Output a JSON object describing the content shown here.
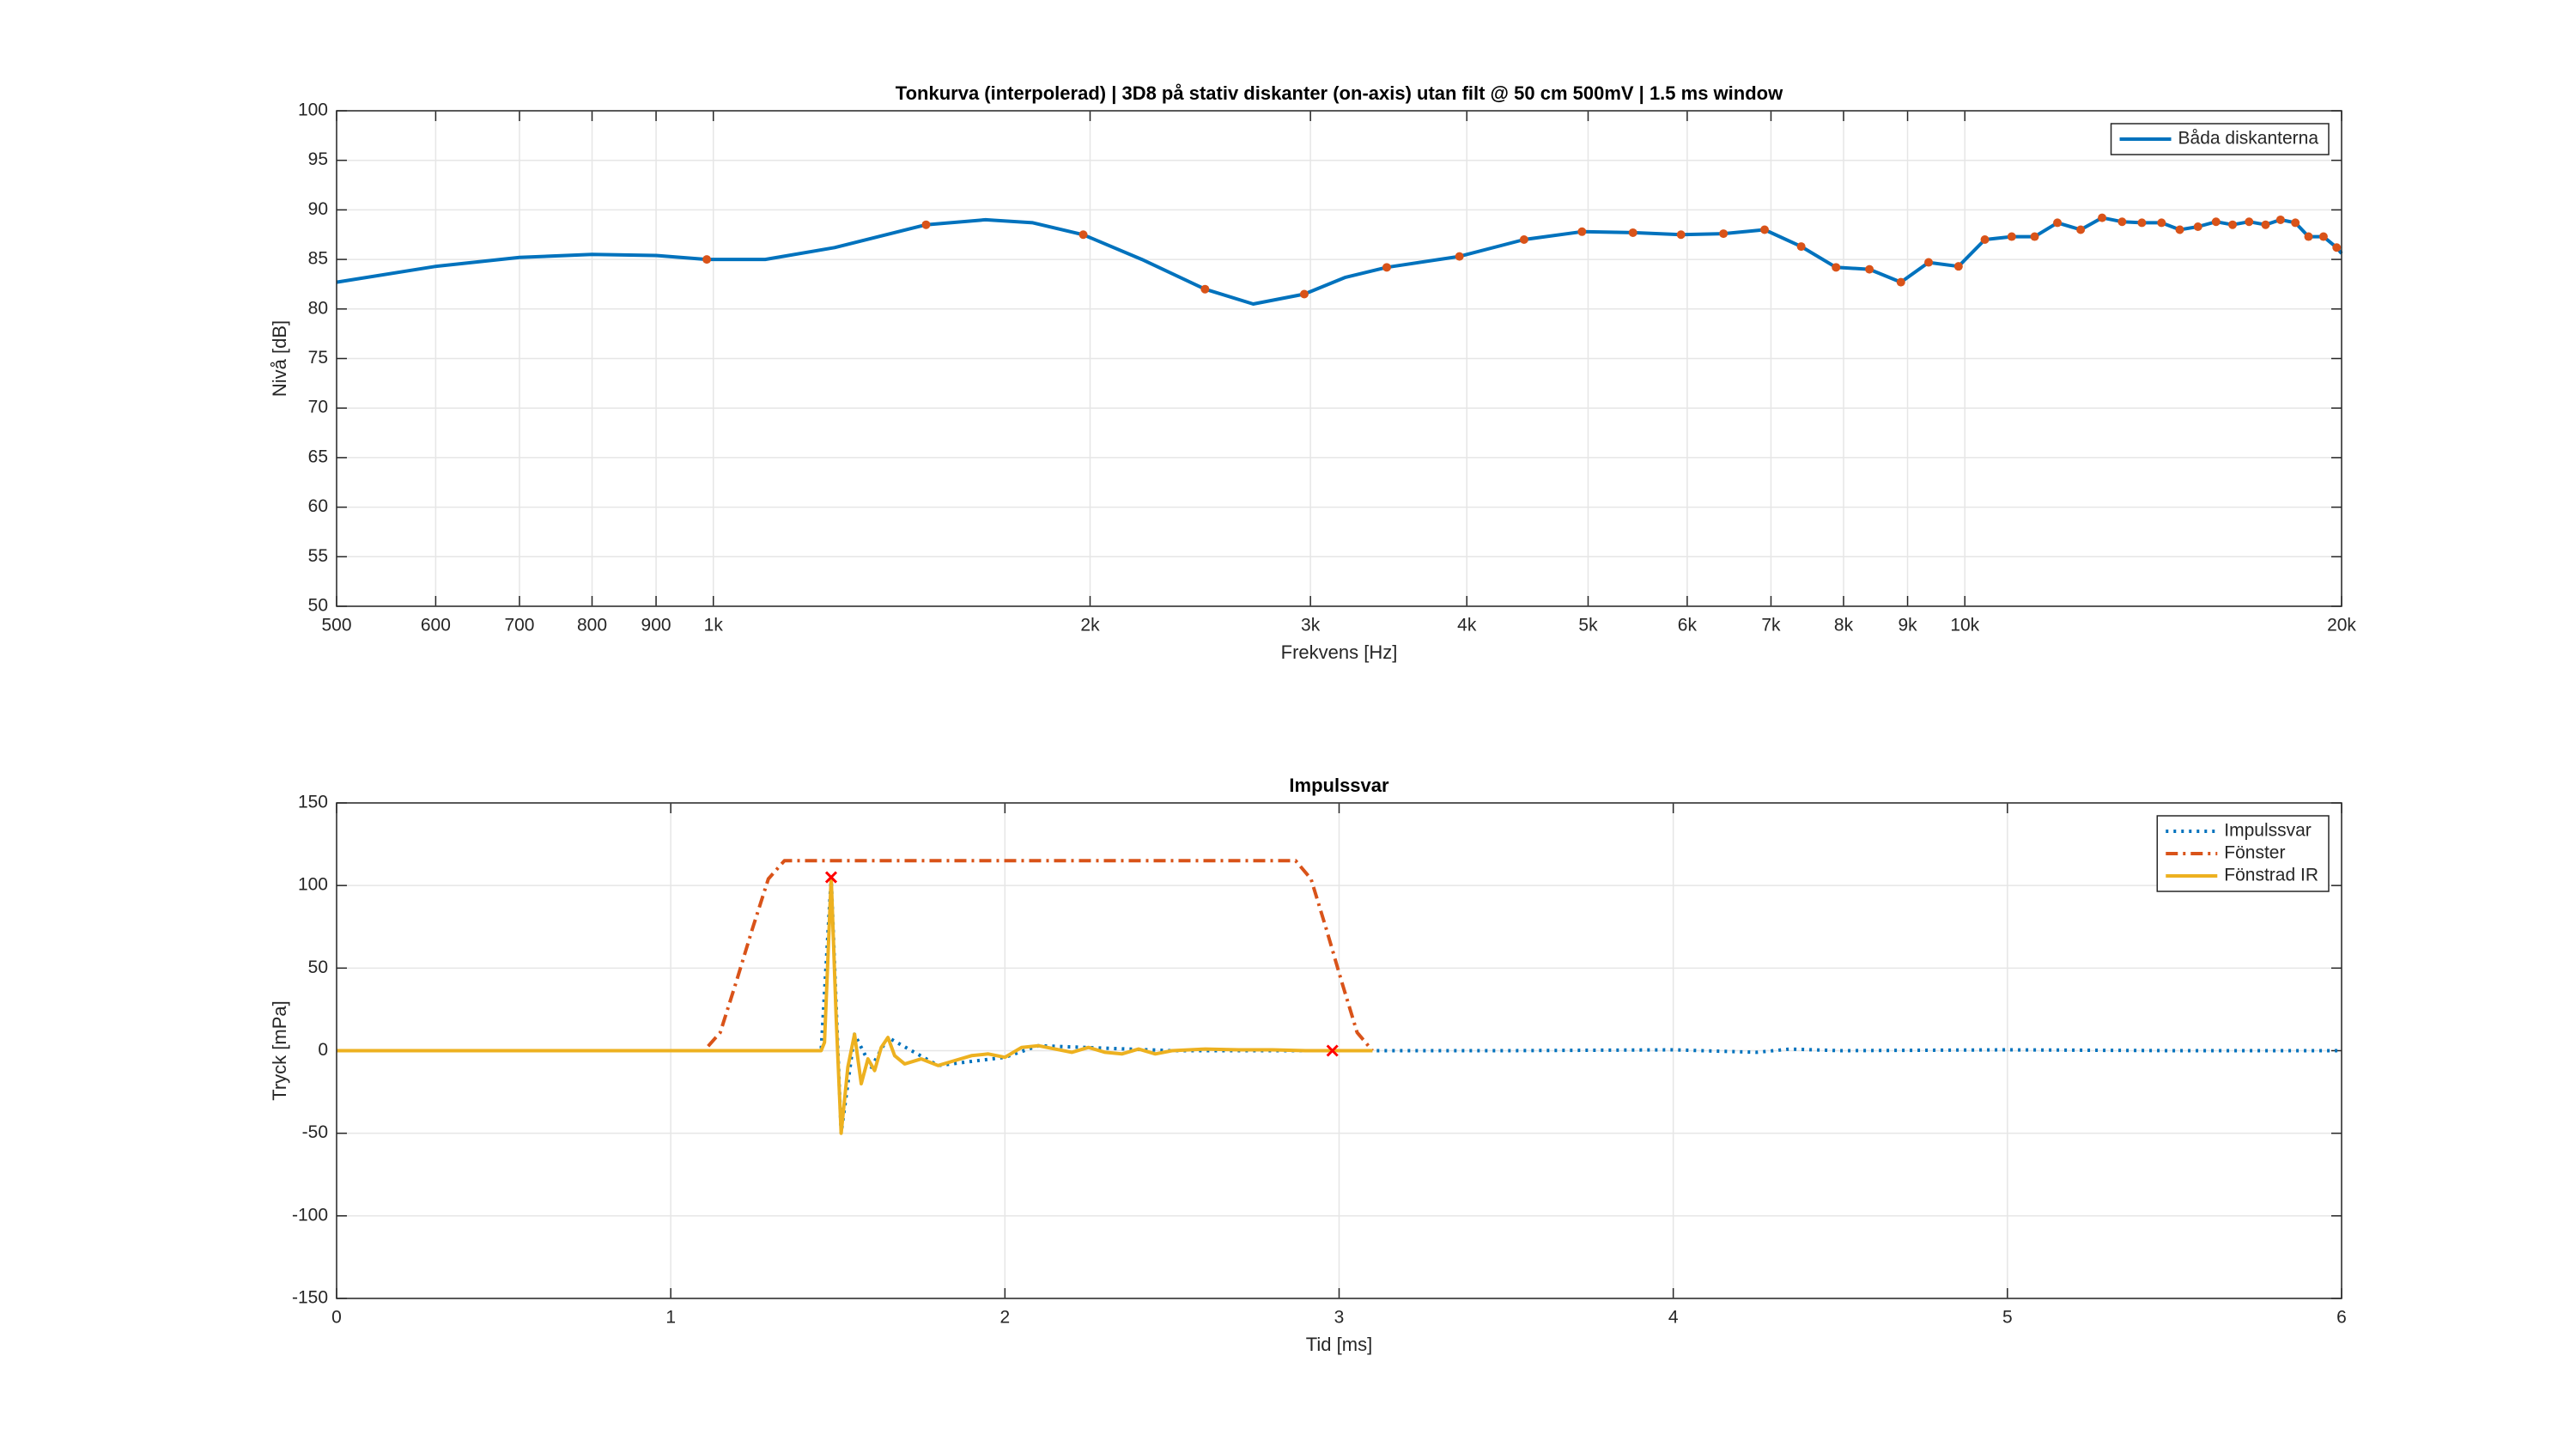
{
  "chart_data": [
    {
      "type": "line",
      "title": "Tonkurva (interpolerad) | 3D8 på stativ diskanter (on-axis) utan filt @ 50 cm 500mV | 1.5 ms window",
      "xlabel": "Frekvens [Hz]",
      "ylabel": "Nivå [dB]",
      "xscale": "log",
      "grid": true,
      "legend": "upper right",
      "xlim": [
        500,
        20000
      ],
      "ylim": [
        50,
        100
      ],
      "xticks": [
        500,
        600,
        700,
        800,
        900,
        {
          "value": 1000,
          "label": "1k"
        },
        {
          "value": 2000,
          "label": "2k"
        },
        {
          "value": 3000,
          "label": "3k"
        },
        {
          "value": 4000,
          "label": "4k"
        },
        {
          "value": 5000,
          "label": "5k"
        },
        {
          "value": 6000,
          "label": "6k"
        },
        {
          "value": 7000,
          "label": "7k"
        },
        {
          "value": 8000,
          "label": "8k"
        },
        {
          "value": 9000,
          "label": "9k"
        },
        {
          "value": 10000,
          "label": "10k"
        },
        {
          "value": 20000,
          "label": "20k"
        }
      ],
      "yticks": [
        50,
        55,
        60,
        65,
        70,
        75,
        80,
        85,
        90,
        95,
        100
      ],
      "series": [
        {
          "name": "Båda diskanterna",
          "color": "#0072bd",
          "style": "solid",
          "x": [
            500,
            600,
            700,
            800,
            900,
            988,
            1100,
            1250,
            1479,
            1650,
            1800,
            1975,
            2200,
            2471,
            2700,
            2966,
            3200,
            3452,
            3946,
            4444,
            4944,
            5430,
            5932,
            6414,
            6918,
            7400,
            7890,
            8390,
            8890,
            9355,
            9884,
            10375,
            10900,
            11370,
            11857,
            12375,
            12873,
            13355,
            13850,
            14360,
            14850,
            15355,
            15875,
            16365,
            16870,
            17390,
            17875,
            18370,
            18820,
            19345,
            19820,
            20000
          ],
          "values": [
            82.7,
            84.3,
            85.2,
            85.5,
            85.4,
            85,
            85,
            86.2,
            88.5,
            89,
            88.7,
            87.5,
            85,
            82,
            80.5,
            81.5,
            83.2,
            84.2,
            85.3,
            87,
            87.8,
            87.7,
            87.5,
            87.6,
            88,
            86.3,
            84.2,
            84,
            82.7,
            84.7,
            84.3,
            87,
            87.3,
            87.3,
            88.7,
            88,
            89.2,
            88.8,
            88.7,
            88.7,
            88,
            88.3,
            88.8,
            88.5,
            88.8,
            88.5,
            89,
            88.7,
            87.3,
            87.3,
            86.2,
            85.6
          ]
        },
        {
          "color": "#d95319",
          "style": "dot",
          "x": [
            988,
            1479,
            1975,
            2471,
            2966,
            3452,
            3946,
            4444,
            4944,
            5430,
            5932,
            6414,
            6918,
            7400,
            7890,
            8390,
            8890,
            9355,
            9884,
            10375,
            10900,
            11370,
            11857,
            12375,
            12873,
            13355,
            13850,
            14360,
            14850,
            15355,
            15875,
            16365,
            16870,
            17390,
            17875,
            18370,
            18820,
            19345,
            19820
          ],
          "values": [
            85,
            88.5,
            87.5,
            82,
            81.5,
            84.2,
            85.3,
            87,
            87.8,
            87.7,
            87.5,
            87.6,
            88,
            86.3,
            84.2,
            84,
            82.7,
            84.7,
            84.3,
            87,
            87.3,
            87.3,
            88.7,
            88,
            89.2,
            88.8,
            88.7,
            88.7,
            88,
            88.3,
            88.8,
            88.5,
            88.8,
            88.5,
            89,
            88.7,
            87.3,
            87.3,
            86.2
          ]
        }
      ]
    },
    {
      "type": "line",
      "title": "Impulssvar",
      "xlabel": "Tid [ms]",
      "ylabel": "Tryck [mPa]",
      "xscale": "linear",
      "grid": true,
      "legend": "upper right",
      "xlim": [
        0,
        6
      ],
      "ylim": [
        -150,
        150
      ],
      "xticks": [
        0,
        1,
        2,
        3,
        4,
        5,
        6
      ],
      "yticks": [
        -150,
        -100,
        -50,
        0,
        50,
        100,
        150
      ],
      "series": [
        {
          "name": "Impulssvar",
          "color": "#0072bd",
          "style": "dotted",
          "x": [
            0,
            1.45,
            1.48,
            1.51,
            1.55,
            1.6,
            1.65,
            1.8,
            2.0,
            2.1,
            2.5,
            3.0,
            3.5,
            4.0,
            4.25,
            4.35,
            4.5,
            5,
            5.5,
            6
          ],
          "values": [
            0,
            0,
            105,
            -50,
            10,
            -10,
            8,
            -9,
            -4,
            3,
            0,
            0,
            0,
            0.5,
            -1,
            1,
            0,
            0.5,
            0,
            0
          ]
        },
        {
          "name": "Fönster",
          "color": "#d95319",
          "style": "dashdot",
          "x": [
            0,
            1.1,
            1.148,
            1.196,
            1.244,
            1.292,
            1.34,
            2.87,
            2.916,
            2.962,
            3.008,
            3.054,
            3.1
          ],
          "values": [
            0,
            0,
            11,
            41.6,
            73.5,
            104,
            115,
            115,
            104,
            73.5,
            41.6,
            11,
            0
          ]
        },
        {
          "name": "Fönstrad IR",
          "color": "#edb120",
          "style": "solid",
          "x": [
            0,
            1.45,
            1.46,
            1.48,
            1.495,
            1.51,
            1.53,
            1.55,
            1.57,
            1.59,
            1.61,
            1.63,
            1.65,
            1.67,
            1.7,
            1.75,
            1.8,
            1.85,
            1.9,
            1.95,
            2.0,
            2.05,
            2.1,
            2.15,
            2.2,
            2.25,
            2.3,
            2.35,
            2.4,
            2.45,
            2.5,
            2.6,
            2.7,
            2.8,
            2.9,
            3.0,
            3.1
          ],
          "values": [
            0,
            0,
            5,
            105,
            20,
            -50,
            -10,
            10,
            -20,
            -5,
            -12,
            2,
            8,
            -3,
            -8,
            -5,
            -9,
            -6,
            -3,
            -2,
            -4,
            2,
            3,
            1,
            -1,
            2,
            -1,
            -2,
            1,
            -2,
            0,
            1,
            0.5,
            0.5,
            0,
            0,
            0
          ]
        },
        {
          "color": "#ff0000",
          "style": "x",
          "x": [
            1.48,
            2.98
          ],
          "values": [
            105,
            0
          ]
        }
      ]
    }
  ]
}
